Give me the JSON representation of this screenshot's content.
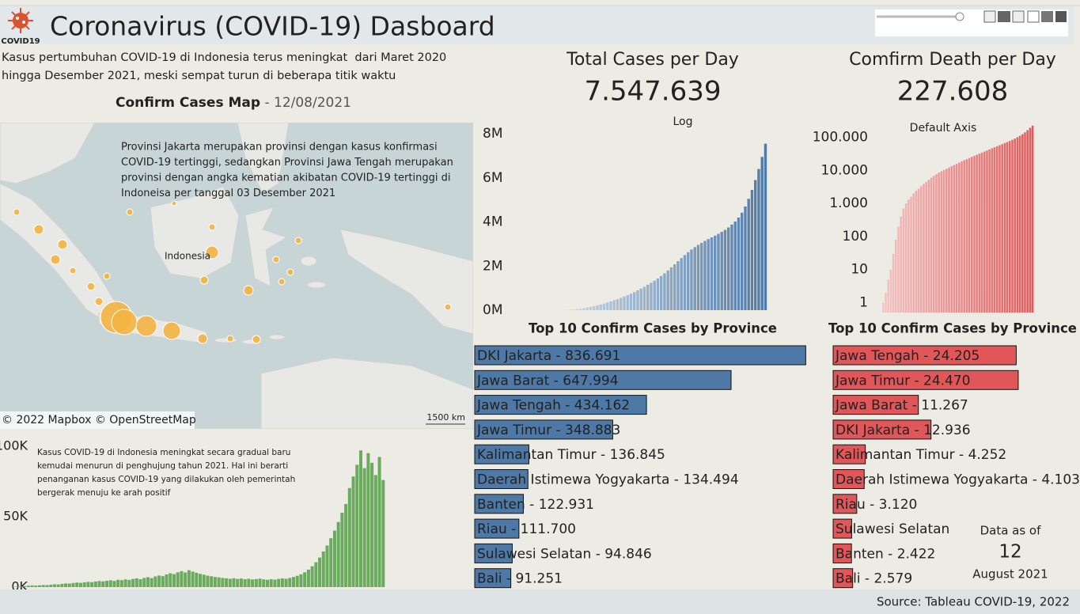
{
  "header": {
    "logo_text": "COVID19",
    "title": "Coronavirus (COVID-19) Dasboard"
  },
  "intro": [
    "Kasus pertumbuhan COVID-19 di Indonesia terus meningkat  dari Maret 2020",
    "hingga Desember 2021, meski sempat turun di beberapa titik waktu"
  ],
  "map": {
    "title": "Confirm Cases Map",
    "subtitle": " - 12/08/2021",
    "annotation": [
      "Provinsi Jakarta merupakan provinsi dengan kasus konfirmasi",
      "COVID-19 tertinggi, sedangkan Provinsi Jawa Tengah merupakan",
      "provinsi dengan angka kematian akibatan COVID-19 tertinggi di",
      "Indoneisa per tanggal 03 Desember 2021"
    ],
    "place_label": "Indonesia",
    "scale_label": "1500 km",
    "attribution": "© 2022 Mapbox © OpenStreetMap"
  },
  "chart_data": [
    {
      "type": "bar",
      "annotation": [
        "Kasus COVID-19 di Indonesia meningkat secara gradual baru",
        "kemudai menurun di penghujung tahun 2021. Hal ini berarti",
        "penanganan kasus COVID-19 yang dilakukan oleh pemerintah",
        "bergerak menuju ke arah positif"
      ],
      "values": [
        200,
        400,
        600,
        800,
        1000,
        1200,
        1100,
        1300,
        1500,
        1400,
        1700,
        2000,
        1900,
        2300,
        2600,
        2500,
        2900,
        3200,
        3000,
        3400,
        3700,
        3500,
        4000,
        4300,
        4100,
        4500,
        4800,
        4400,
        5200,
        4900,
        5500,
        5100,
        5800,
        6200,
        5600,
        6500,
        7000,
        6400,
        7600,
        8200,
        7800,
        9000,
        9800,
        9200,
        10500,
        11300,
        10400,
        12000,
        11000,
        10200,
        9400,
        8800,
        8100,
        7700,
        7200,
        6900,
        6500,
        6200,
        5900,
        6300,
        5800,
        6100,
        5600,
        5900,
        5400,
        5700,
        6000,
        5500,
        5200,
        5600,
        5300,
        5800,
        6200,
        5900,
        6500,
        7200,
        8000,
        9100,
        10500,
        12400,
        14800,
        17600,
        21000,
        25300,
        29500,
        34700,
        40100,
        46200,
        52800,
        59000,
        70300,
        78500,
        86800,
        97000,
        84400,
        95100,
        88200,
        79500,
        92300,
        76000
      ],
      "color": "#6aab5e",
      "ylim": [
        0,
        105000
      ],
      "yticks": [
        {
          "value": 0,
          "label": "0K"
        },
        {
          "value": 50000,
          "label": "50K"
        },
        {
          "value": 100000,
          "label": "100K"
        }
      ]
    },
    {
      "type": "bar",
      "title": "Total Cases per Day",
      "total": {
        "value": 7547639,
        "label": "7.547.639"
      },
      "subtitle": "Log",
      "values": [
        10000,
        20000,
        30000,
        50000,
        70000,
        90000,
        120000,
        150000,
        180000,
        220000,
        260000,
        300000,
        350000,
        400000,
        450000,
        500000,
        560000,
        620000,
        680000,
        750000,
        820000,
        900000,
        980000,
        1060000,
        1150000,
        1240000,
        1340000,
        1440000,
        1550000,
        1670000,
        1800000,
        1940000,
        2080000,
        2220000,
        2360000,
        2500000,
        2630000,
        2750000,
        2860000,
        2960000,
        3050000,
        3140000,
        3220000,
        3300000,
        3380000,
        3460000,
        3550000,
        3640000,
        3750000,
        3880000,
        4020000,
        4200000,
        4420000,
        4700000,
        5050000,
        5450000,
        5900000,
        6400000,
        6950000,
        7547639
      ],
      "color": "#4e79a7",
      "ylim": [
        0,
        8000000
      ],
      "yticks": [
        {
          "value": 0,
          "label": "0M"
        },
        {
          "value": 2000000,
          "label": "2M"
        },
        {
          "value": 4000000,
          "label": "4M"
        },
        {
          "value": 6000000,
          "label": "6M"
        },
        {
          "value": 8000000,
          "label": "8M"
        }
      ]
    },
    {
      "type": "bar",
      "title": "Comfirm Death per Day",
      "total": {
        "value": 227608,
        "label": "227.608"
      },
      "subtitle": "Default Axis",
      "log_scale": true,
      "values": [
        1,
        2,
        5,
        10,
        30,
        80,
        200,
        400,
        700,
        1000,
        1300,
        1600,
        2000,
        2400,
        2800,
        3300,
        3900,
        4500,
        5200,
        6000,
        6800,
        7600,
        8500,
        9400,
        10300,
        11200,
        12200,
        13300,
        14500,
        15800,
        17200,
        18700,
        20300,
        22000,
        23800,
        25700,
        27700,
        29900,
        32200,
        34700,
        37400,
        40300,
        43400,
        46700,
        50200,
        54000,
        58100,
        62500,
        67200,
        72300,
        78000,
        84500,
        92000,
        101000,
        112000,
        125000,
        142000,
        165000,
        195000,
        227608
      ],
      "color": "#e15759",
      "ylim": [
        0.5,
        250000
      ],
      "yticks": [
        1,
        10,
        100,
        {
          "value": 1000,
          "label": "1.000"
        },
        {
          "value": 10000,
          "label": "10.000"
        },
        {
          "value": 100000,
          "label": "100.000"
        }
      ]
    },
    {
      "type": "hbar",
      "title": "Top 10 Confirm Cases by Province",
      "values": [
        836691,
        647994,
        434162,
        348883,
        136845,
        134494,
        122931,
        111700,
        94846,
        91251
      ],
      "value_labels": [
        "DKI Jakarta - 836.691",
        "Jawa Barat - 647.994",
        "Jawa Tengah - 434.162",
        "Jawa Timur - 348.883",
        "Kalimantan Timur - 136.845",
        "Daerah Istimewa Yogyakarta - 134.494",
        "Banten - 122.931",
        "Riau - 111.700",
        "Sulawesi Selatan - 94.846",
        "Bali - 91.251"
      ],
      "color": "#4e79a7",
      "xlim": [
        0,
        840000
      ]
    },
    {
      "type": "hbar",
      "title": "Top 10 Confirm Cases by Province",
      "values": [
        24205,
        24470,
        11267,
        12936,
        4252,
        4103,
        3120,
        2450,
        2422,
        2579
      ],
      "value_labels": [
        "Jawa Tengah - 24.205",
        "Jawa Timur - 24.470",
        "Jawa Barat - 11.267",
        "DKI Jakarta - 12.936",
        "Kalimantan Timur - 4.252",
        "Daerah Istimewa Yogyakarta - 4.103",
        "Riau - 3.120",
        "Sulawesi Selatan",
        "Banten - 2.422",
        "Bali - 2.579"
      ],
      "color": "#e15759",
      "xlim": [
        0,
        25000
      ]
    }
  ],
  "data_as_of": {
    "label": "Data as of",
    "day": 12,
    "month_year": "August 2021"
  },
  "source": "Source: Tableau COVID-19, 2022"
}
